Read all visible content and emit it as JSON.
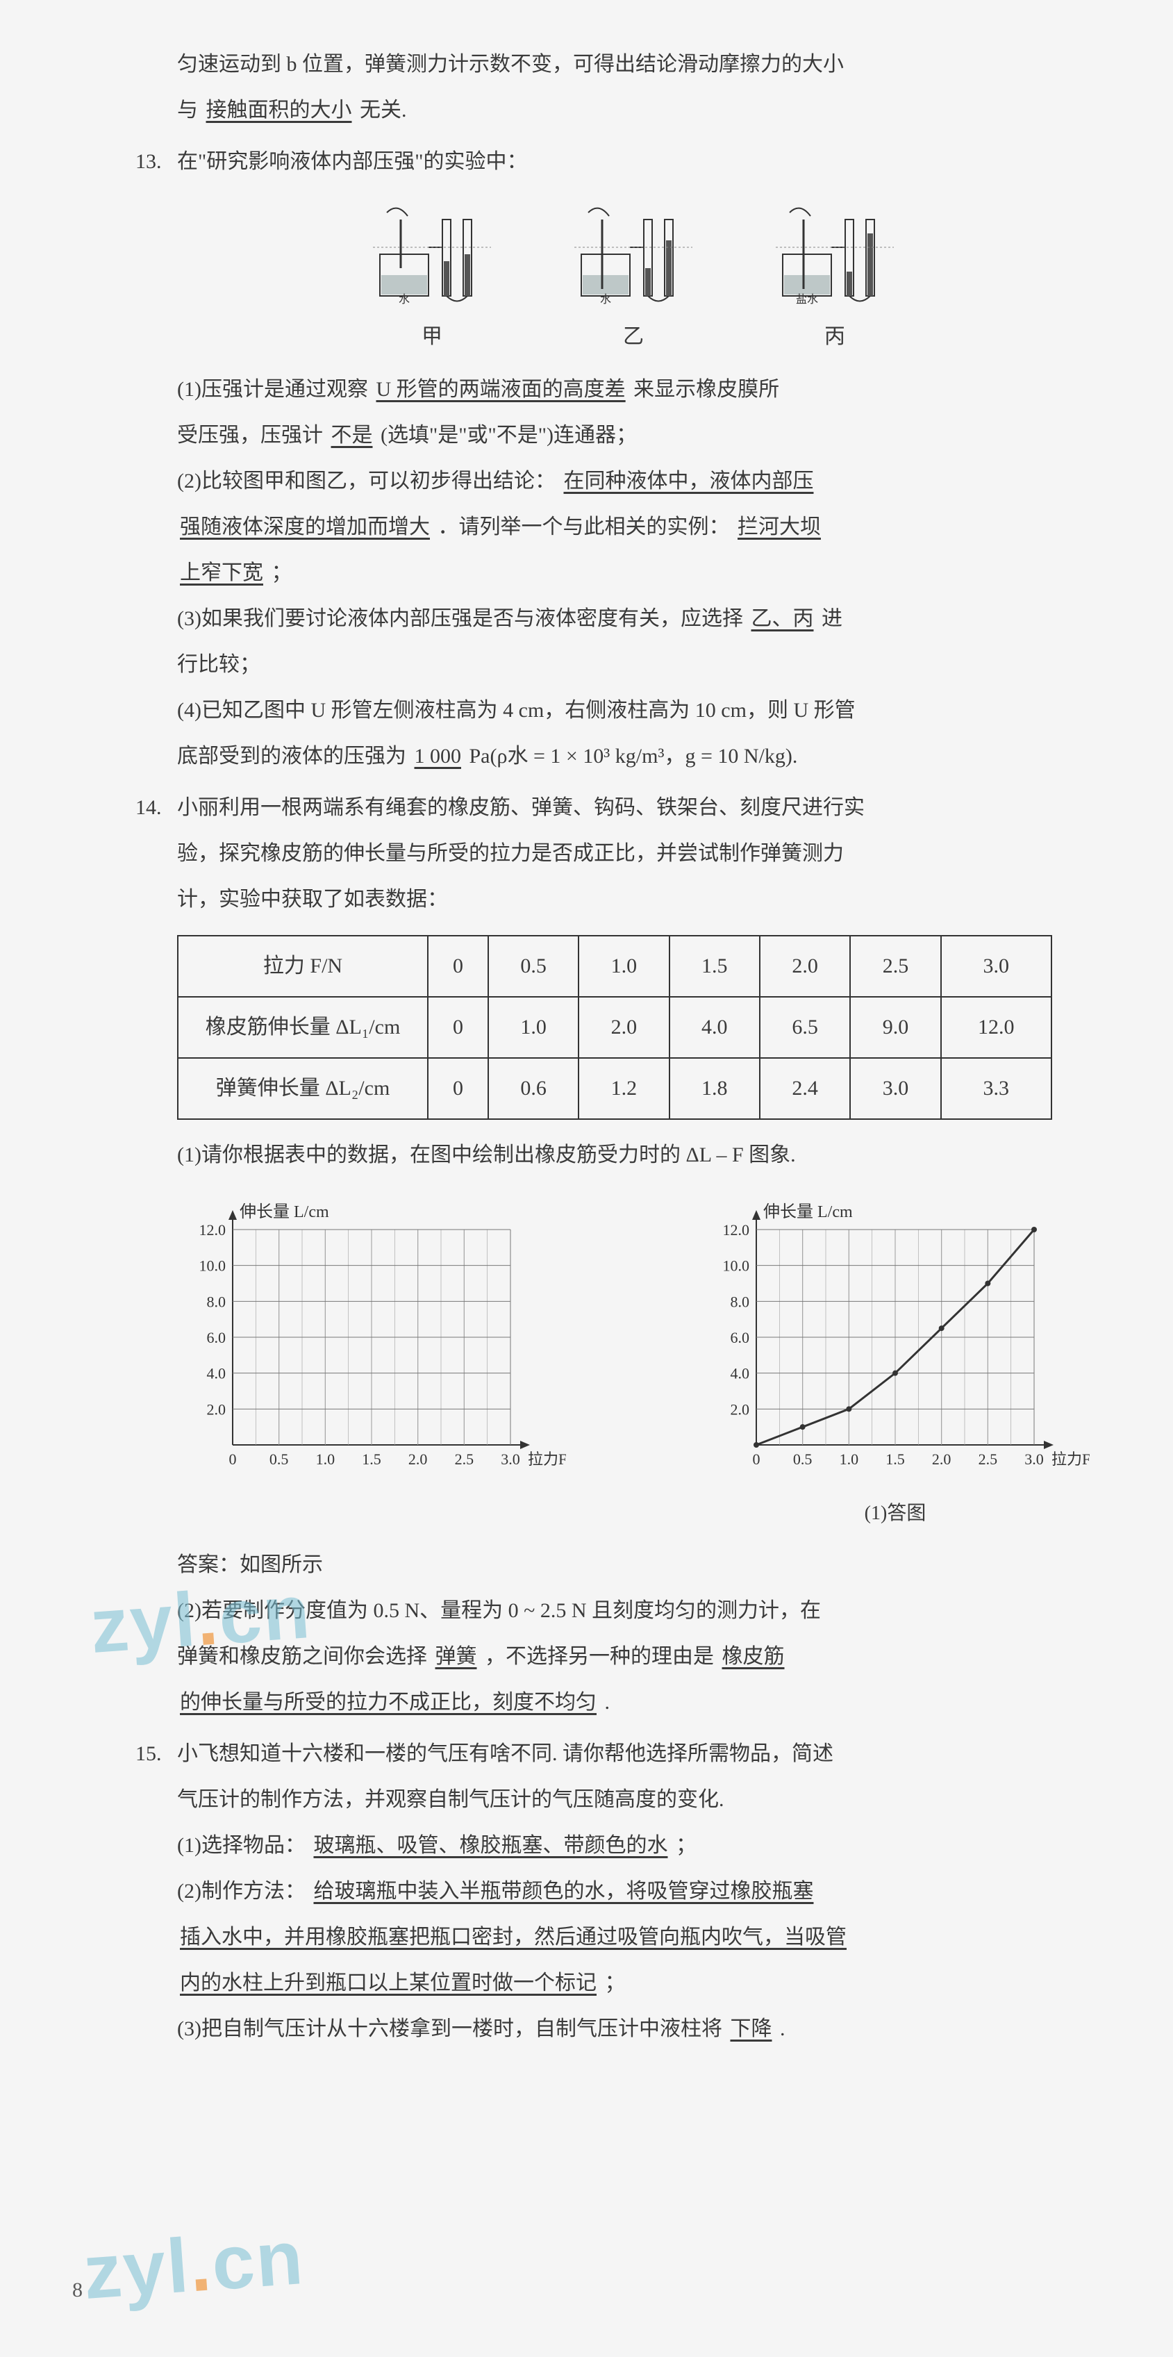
{
  "pageNumber": "8",
  "q12tail": {
    "line": "匀速运动到 b 位置，弹簧测力计示数不变，可得出结论滑动摩擦力的大小",
    "line2_prefix": "与",
    "blank": "接触面积的大小",
    "line2_suffix": "无关."
  },
  "q13": {
    "num": "13.",
    "stem": "在\"研究影响液体内部压强\"的实验中：",
    "labels": {
      "a": "甲",
      "b": "乙",
      "c": "丙"
    },
    "liquid_a": "水",
    "liquid_b": "水",
    "liquid_c": "盐水",
    "p1_a": "(1)压强计是通过观察",
    "p1_blank1": "U 形管的两端液面的高度差",
    "p1_b": "来显示橡皮膜所",
    "p1_c": "受压强，压强计",
    "p1_blank2": "不是",
    "p1_d": "(选填\"是\"或\"不是\")连通器；",
    "p2_a": "(2)比较图甲和图乙，可以初步得出结论：",
    "p2_blank1": "在同种液体中，液体内部压",
    "p2_blank1b": "强随液体深度的增加而增大",
    "p2_b": "．请列举一个与此相关的实例：",
    "p2_blank2": "拦河大坝",
    "p2_blank2b": "上窄下宽",
    "p2_c": "；",
    "p3_a": "(3)如果我们要讨论液体内部压强是否与液体密度有关，应选择",
    "p3_blank": "乙、丙",
    "p3_b": "进",
    "p3_c": "行比较；",
    "p4_a": "(4)已知乙图中 U 形管左侧液柱高为 4 cm，右侧液柱高为 10 cm，则 U 形管",
    "p4_b": "底部受到的液体的压强为",
    "p4_blank": "1 000",
    "p4_c": "Pa(ρ水 = 1 × 10³ kg/m³，g = 10 N/kg)."
  },
  "q14": {
    "num": "14.",
    "stem1": "小丽利用一根两端系有绳套的橡皮筋、弹簧、钩码、铁架台、刻度尺进行实",
    "stem2": "验，探究橡皮筋的伸长量与所受的拉力是否成正比，并尝试制作弹簧测力",
    "stem3": "计，实验中获取了如表数据：",
    "table": {
      "header": [
        "拉力 F/N",
        "0",
        "0.5",
        "1.0",
        "1.5",
        "2.0",
        "2.5",
        "3.0"
      ],
      "row1": [
        "橡皮筋伸长量 ΔL₁/cm",
        "0",
        "1.0",
        "2.0",
        "4.0",
        "6.5",
        "9.0",
        "12.0"
      ],
      "row2": [
        "弹簧伸长量 ΔL₂/cm",
        "0",
        "0.6",
        "1.2",
        "1.8",
        "2.4",
        "3.0",
        "3.3"
      ]
    },
    "p1": "(1)请你根据表中的数据，在图中绘制出橡皮筋受力时的 ΔL – F 图象.",
    "chart": {
      "ylabel": "伸长量  L/cm",
      "xlabel": "拉力F/N",
      "yticks": [
        "2.0",
        "4.0",
        "6.0",
        "8.0",
        "10.0",
        "12.0"
      ],
      "xticks": [
        "0",
        "0.5",
        "1.0",
        "1.5",
        "2.0",
        "2.5",
        "3.0"
      ],
      "grid_color": "#777",
      "bg": "#ffffff",
      "curve_points": [
        [
          0,
          0
        ],
        [
          0.5,
          1.0
        ],
        [
          1.0,
          2.0
        ],
        [
          1.5,
          4.0
        ],
        [
          2.0,
          6.5
        ],
        [
          2.5,
          9.0
        ],
        [
          3.0,
          12.0
        ]
      ],
      "xlim": [
        0,
        3.0
      ],
      "ylim": [
        0,
        12.0
      ],
      "answer_caption": "(1)答图"
    },
    "ans_note": "答案：如图所示",
    "p2_a": "(2)若要制作分度值为 0.5 N、量程为 0 ~ 2.5 N 且刻度均匀的测力计，在",
    "p2_b": "弹簧和橡皮筋之间你会选择",
    "p2_blank1": "弹簧",
    "p2_c": "，不选择另一种的理由是",
    "p2_blank2": "橡皮筋",
    "p2_blank2b": "的伸长量与所受的拉力不成正比，刻度不均匀",
    "p2_d": "."
  },
  "q15": {
    "num": "15.",
    "stem1": "小飞想知道十六楼和一楼的气压有啥不同. 请你帮他选择所需物品，简述",
    "stem2": "气压计的制作方法，并观察自制气压计的气压随高度的变化.",
    "p1_a": "(1)选择物品：",
    "p1_blank": "玻璃瓶、吸管、橡胶瓶塞、带颜色的水",
    "p1_b": "；",
    "p2_a": "(2)制作方法：",
    "p2_blank1": "给玻璃瓶中装入半瓶带颜色的水，将吸管穿过橡胶瓶塞",
    "p2_blank2": "插入水中，并用橡胶瓶塞把瓶口密封，然后通过吸管向瓶内吹气，当吸管",
    "p2_blank3": "内的水柱上升到瓶口以上某位置时做一个标记",
    "p2_b": "；",
    "p3_a": "(3)把自制气压计从十六楼拿到一楼时，自制气压计中液柱将",
    "p3_blank": "下降",
    "p3_b": "."
  },
  "watermark": "zyl.cn"
}
